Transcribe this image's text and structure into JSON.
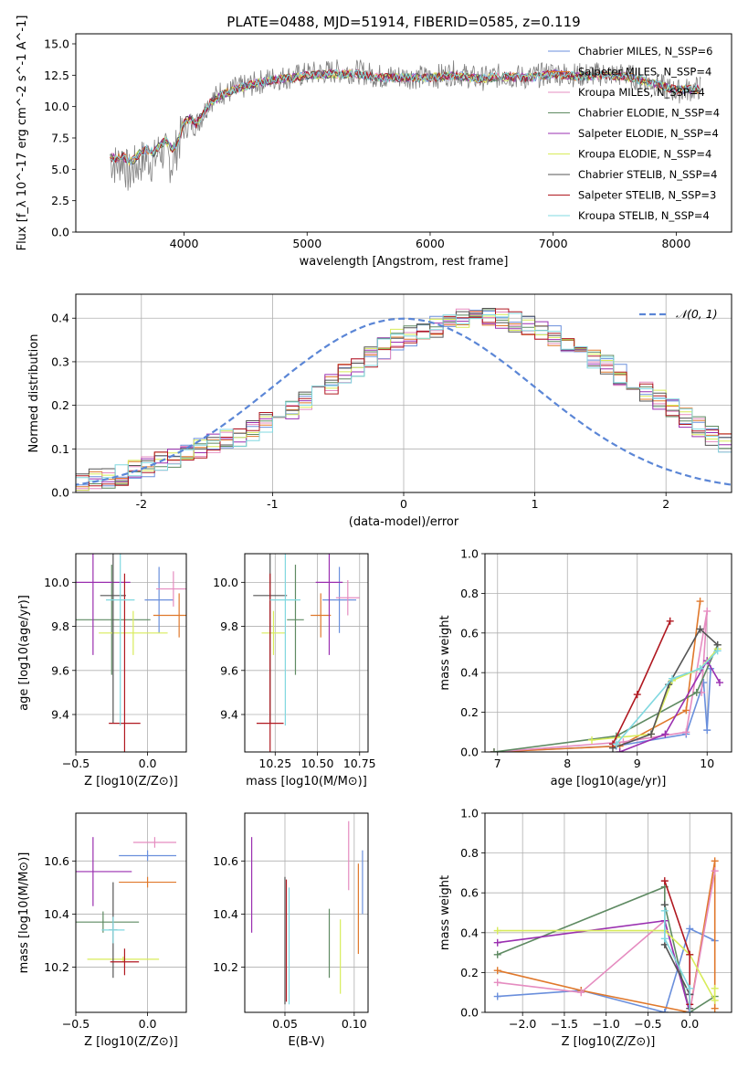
{
  "figure_title": "PLATE=0488, MJD=51914, FIBERID=0585, z=0.119",
  "colors": {
    "Chabrier MILES": "#6a8fdc",
    "Salpeter MILES": "#e0782b",
    "Kroupa MILES": "#e58cc0",
    "Chabrier ELODIE": "#5e8a62",
    "Salpeter ELODIE": "#9a2fb0",
    "Kroupa ELODIE": "#d8ec5a",
    "Chabrier STELIB": "#555555",
    "Salpeter STELIB": "#b01820",
    "Kroupa STELIB": "#80d8e0",
    "normal_curve": "#5b86d6",
    "grid": "#b0b0b0"
  },
  "chart_data": [
    {
      "id": "spectrum",
      "type": "line",
      "title": "PLATE=0488, MJD=51914, FIBERID=0585, z=0.119",
      "xlabel": "wavelength [Angstrom, rest frame]",
      "ylabel": "Flux [f_λ 10^-17 erg cm^-2 s^-1 A^-1]",
      "xlim": [
        3120,
        8450
      ],
      "ylim": [
        0,
        15.8
      ],
      "xticks": [
        4000,
        5000,
        6000,
        7000,
        8000
      ],
      "yticks": [
        "0.0",
        "2.5",
        "5.0",
        "7.5",
        "10.0",
        "12.5",
        "15.0"
      ],
      "grid": false,
      "legend_position": "top-right",
      "legend": [
        "Chabrier MILES, N_SSP=6",
        "Salpeter MILES, N_SSP=4",
        "Kroupa MILES, N_SSP=4",
        "Chabrier ELODIE, N_SSP=4",
        "Salpeter ELODIE, N_SSP=4",
        "Kroupa ELODIE, N_SSP=4",
        "Chabrier STELIB, N_SSP=4",
        "Salpeter STELIB, N_SSP=3",
        "Kroupa STELIB, N_SSP=4"
      ],
      "data_spectrum": {
        "x": [
          3400,
          3450,
          3500,
          3550,
          3600,
          3650,
          3700,
          3750,
          3800,
          3850,
          3900,
          3950,
          4000,
          4050,
          4100,
          4150,
          4200,
          4250,
          4300,
          4350,
          4400,
          4500,
          4600,
          4700,
          4800,
          4900,
          5000,
          5200,
          5400,
          5600,
          5800,
          6000,
          6200,
          6400,
          6600,
          6800,
          7000,
          7200,
          7400,
          7600,
          7800,
          8000,
          8200
        ],
        "y": [
          5.8,
          5.3,
          5.9,
          4.5,
          5.2,
          5.6,
          6.0,
          5.5,
          6.6,
          6.2,
          5.4,
          7.0,
          8.2,
          8.7,
          8.6,
          9.3,
          10.4,
          10.7,
          11.2,
          11.0,
          11.4,
          11.6,
          11.9,
          12.2,
          12.3,
          12.4,
          12.6,
          12.8,
          12.8,
          12.4,
          12.4,
          12.3,
          12.7,
          12.2,
          12.5,
          12.3,
          12.7,
          12.5,
          12.6,
          12.5,
          11.9,
          11.2,
          11.5
        ]
      },
      "model_spectrum": {
        "x": [
          3400,
          3450,
          3500,
          3550,
          3600,
          3650,
          3700,
          3750,
          3800,
          3850,
          3900,
          3950,
          4000,
          4050,
          4100,
          4150,
          4200,
          4250,
          4300,
          4350,
          4400,
          4500,
          4600,
          4700,
          4800,
          4900,
          5000,
          5200,
          5400,
          5600,
          5800,
          6000,
          6200,
          6400,
          6600,
          6800,
          7000,
          7200,
          7400,
          7600,
          7800,
          8000,
          8200
        ],
        "y": [
          6.0,
          5.8,
          6.1,
          5.6,
          5.8,
          6.4,
          6.6,
          6.3,
          6.9,
          7.3,
          6.6,
          7.2,
          8.8,
          9.0,
          8.6,
          9.4,
          10.2,
          10.5,
          10.9,
          11.1,
          11.3,
          11.6,
          11.9,
          12.1,
          12.2,
          12.3,
          12.5,
          12.6,
          12.6,
          12.3,
          12.3,
          12.3,
          12.5,
          12.2,
          12.4,
          12.3,
          12.6,
          12.4,
          12.5,
          12.4,
          11.9,
          11.3,
          11.4
        ]
      }
    },
    {
      "id": "residuals",
      "type": "line",
      "xlabel": "(data-model)/error",
      "ylabel": "Normed distribution",
      "xlim": [
        -2.5,
        2.5
      ],
      "ylim": [
        0,
        0.455
      ],
      "xticks": [
        -2,
        -1,
        0,
        1,
        2
      ],
      "yticks": [
        "0.0",
        "0.1",
        "0.2",
        "0.3",
        "0.4"
      ],
      "grid": true,
      "legend_position": "top-right",
      "legend": [
        "𝒩(0, 1)"
      ],
      "normal_curve": {
        "mean": 0,
        "sigma": 1
      },
      "histogram_bins": {
        "x_start": -2.5,
        "bin_width": 0.1,
        "heights": [
          0.02,
          0.03,
          0.03,
          0.04,
          0.05,
          0.06,
          0.07,
          0.08,
          0.09,
          0.1,
          0.11,
          0.12,
          0.13,
          0.14,
          0.16,
          0.17,
          0.19,
          0.21,
          0.23,
          0.25,
          0.27,
          0.29,
          0.31,
          0.33,
          0.35,
          0.36,
          0.37,
          0.38,
          0.39,
          0.4,
          0.41,
          0.4,
          0.4,
          0.39,
          0.38,
          0.37,
          0.36,
          0.34,
          0.33,
          0.31,
          0.29,
          0.27,
          0.25,
          0.23,
          0.21,
          0.19,
          0.17,
          0.15,
          0.13,
          0.11,
          0.1
        ]
      }
    },
    {
      "id": "age-vs-metallicity",
      "type": "scatter",
      "xlabel": "Z [log10(Z/Z⊙)]",
      "ylabel": "age [log10(age/yr)]",
      "xlim": [
        -0.5,
        0.27
      ],
      "ylim": [
        9.23,
        10.13
      ],
      "xticks": [
        "−0.5",
        "0.0"
      ],
      "yticks": [
        "9.4",
        "9.6",
        "9.8",
        "10.0"
      ],
      "grid": true,
      "points": [
        {
          "model": "Chabrier MILES",
          "x": 0.08,
          "y": 9.92,
          "xerr": 0.1,
          "yerr": 0.15
        },
        {
          "model": "Salpeter MILES",
          "x": 0.22,
          "y": 9.85,
          "xerr": 0.18,
          "yerr": 0.1
        },
        {
          "model": "Kroupa MILES",
          "x": 0.18,
          "y": 9.97,
          "xerr": 0.12,
          "yerr": 0.08
        },
        {
          "model": "Chabrier ELODIE",
          "x": -0.25,
          "y": 9.83,
          "xerr": 0.27,
          "yerr": 0.25
        },
        {
          "model": "Salpeter ELODIE",
          "x": -0.38,
          "y": 10.0,
          "xerr": 0.26,
          "yerr": 0.33
        },
        {
          "model": "Kroupa ELODIE",
          "x": -0.1,
          "y": 9.77,
          "xerr": 0.24,
          "yerr": 0.1
        },
        {
          "model": "Chabrier STELIB",
          "x": -0.24,
          "y": 9.94,
          "xerr": 0.09,
          "yerr": 0.58
        },
        {
          "model": "Salpeter STELIB",
          "x": -0.16,
          "y": 9.36,
          "xerr": 0.11,
          "yerr": 0.68
        },
        {
          "model": "Kroupa STELIB",
          "x": -0.19,
          "y": 9.92,
          "xerr": 0.1,
          "yerr": 0.57
        }
      ]
    },
    {
      "id": "age-vs-mass",
      "type": "scatter",
      "xlabel": "mass [log10(M/M⊙)]",
      "ylabel": "",
      "xlim": [
        10.07,
        10.8
      ],
      "ylim": [
        9.23,
        10.13
      ],
      "xticks": [
        "10.25",
        "10.50",
        "10.75"
      ],
      "yticks": [
        "9.4",
        "9.6",
        "9.8",
        "10.0"
      ],
      "grid": true,
      "points": [
        {
          "model": "Chabrier MILES",
          "x": 10.63,
          "y": 9.92,
          "xerr": 0.1,
          "yerr": 0.15
        },
        {
          "model": "Salpeter MILES",
          "x": 10.52,
          "y": 9.85,
          "xerr": 0.06,
          "yerr": 0.1
        },
        {
          "model": "Kroupa MILES",
          "x": 10.68,
          "y": 9.93,
          "xerr": 0.07,
          "yerr": 0.08
        },
        {
          "model": "Chabrier ELODIE",
          "x": 10.37,
          "y": 9.83,
          "xerr": 0.05,
          "yerr": 0.25
        },
        {
          "model": "Salpeter ELODIE",
          "x": 10.57,
          "y": 10.0,
          "xerr": 0.08,
          "yerr": 0.33
        },
        {
          "model": "Kroupa ELODIE",
          "x": 10.24,
          "y": 9.77,
          "xerr": 0.07,
          "yerr": 0.1
        },
        {
          "model": "Chabrier STELIB",
          "x": 10.22,
          "y": 9.94,
          "xerr": 0.1,
          "yerr": 0.58
        },
        {
          "model": "Salpeter STELIB",
          "x": 10.22,
          "y": 9.36,
          "xerr": 0.08,
          "yerr": 0.68
        },
        {
          "model": "Kroupa STELIB",
          "x": 10.31,
          "y": 9.92,
          "xerr": 0.09,
          "yerr": 0.57
        }
      ]
    },
    {
      "id": "mass-weight-vs-age",
      "type": "line",
      "xlabel": "age [log10(age/yr)]",
      "ylabel": "mass weight",
      "xlim": [
        6.82,
        10.35
      ],
      "ylim": [
        0,
        1.0
      ],
      "xticks": [
        "7",
        "8",
        "9",
        "10"
      ],
      "yticks": [
        "0.0",
        "0.2",
        "0.4",
        "0.6",
        "0.8",
        "1.0"
      ],
      "grid": true,
      "series": [
        {
          "model": "Chabrier MILES",
          "x": [
            6.95,
            8.7,
            9.7,
            9.95,
            10.0,
            10.05
          ],
          "y": [
            0.0,
            0.03,
            0.09,
            0.35,
            0.11,
            0.42
          ]
        },
        {
          "model": "Salpeter MILES",
          "x": [
            6.95,
            8.75,
            9.7,
            9.9
          ],
          "y": [
            0.0,
            0.03,
            0.21,
            0.76
          ]
        },
        {
          "model": "Kroupa MILES",
          "x": [
            6.95,
            8.8,
            9.7,
            10.0,
            9.92
          ],
          "y": [
            0.0,
            0.05,
            0.1,
            0.71,
            0.3
          ]
        },
        {
          "model": "Chabrier ELODIE",
          "x": [
            6.95,
            8.7,
            9.85,
            10.15
          ],
          "y": [
            0.0,
            0.08,
            0.3,
            0.54
          ]
        },
        {
          "model": "Salpeter ELODIE",
          "x": [
            8.75,
            9.4,
            10.0,
            10.18
          ],
          "y": [
            0.0,
            0.09,
            0.46,
            0.35
          ]
        },
        {
          "model": "Kroupa ELODIE",
          "x": [
            8.35,
            9.2,
            9.5,
            9.9,
            10.15
          ],
          "y": [
            0.06,
            0.09,
            0.36,
            0.42,
            0.52
          ]
        },
        {
          "model": "Chabrier STELIB",
          "x": [
            8.65,
            9.2,
            9.45,
            9.9,
            10.15
          ],
          "y": [
            0.02,
            0.09,
            0.34,
            0.62,
            0.54
          ]
        },
        {
          "model": "Salpeter STELIB",
          "x": [
            8.65,
            9.0,
            9.47
          ],
          "y": [
            0.04,
            0.29,
            0.66
          ]
        },
        {
          "model": "Kroupa STELIB",
          "x": [
            8.7,
            9.5,
            9.9,
            10.15
          ],
          "y": [
            0.04,
            0.37,
            0.42,
            0.51
          ]
        }
      ]
    },
    {
      "id": "mass-vs-metallicity",
      "type": "scatter",
      "xlabel": "Z [log10(Z/Z⊙)]",
      "ylabel": "mass [log10(M/M⊙)]",
      "xlim": [
        -0.5,
        0.27
      ],
      "ylim": [
        10.03,
        10.78
      ],
      "xticks": [
        "−0.5",
        "0.0"
      ],
      "yticks": [
        "10.2",
        "10.4",
        "10.6"
      ],
      "grid": true,
      "points": [
        {
          "model": "Chabrier MILES",
          "x": 0.0,
          "y": 10.62,
          "xerr": 0.2,
          "yerr": 0.02
        },
        {
          "model": "Salpeter MILES",
          "x": 0.0,
          "y": 10.52,
          "xerr": 0.2,
          "yerr": 0.02
        },
        {
          "model": "Kroupa MILES",
          "x": 0.05,
          "y": 10.67,
          "xerr": 0.15,
          "yerr": 0.02
        },
        {
          "model": "Chabrier ELODIE",
          "x": -0.31,
          "y": 10.37,
          "xerr": 0.25,
          "yerr": 0.04
        },
        {
          "model": "Salpeter ELODIE",
          "x": -0.38,
          "y": 10.56,
          "xerr": 0.27,
          "yerr": 0.13
        },
        {
          "model": "Kroupa ELODIE",
          "x": -0.17,
          "y": 10.23,
          "xerr": 0.25,
          "yerr": 0.01
        },
        {
          "model": "Chabrier STELIB",
          "x": -0.24,
          "y": 10.34,
          "xerr": 0.03,
          "yerr": 0.18
        },
        {
          "model": "Salpeter STELIB",
          "x": -0.16,
          "y": 10.22,
          "xerr": 0.1,
          "yerr": 0.05
        },
        {
          "model": "Kroupa STELIB",
          "x": -0.24,
          "y": 10.34,
          "xerr": 0.08,
          "yerr": 0.05
        }
      ]
    },
    {
      "id": "mass-vs-extinction",
      "type": "scatter",
      "xlabel": "E(B-V)",
      "ylabel": "",
      "xlim": [
        0.021,
        0.11
      ],
      "ylim": [
        10.03,
        10.78
      ],
      "xticks": [
        "0.05",
        "0.10"
      ],
      "yticks": [
        "10.2",
        "10.4",
        "10.6"
      ],
      "grid": true,
      "points": [
        {
          "model": "Chabrier MILES",
          "x": 0.106,
          "y": 10.52,
          "yerr": 0.12
        },
        {
          "model": "Salpeter MILES",
          "x": 0.103,
          "y": 10.42,
          "yerr": 0.17
        },
        {
          "model": "Kroupa MILES",
          "x": 0.096,
          "y": 10.62,
          "yerr": 0.13
        },
        {
          "model": "Chabrier ELODIE",
          "x": 0.082,
          "y": 10.29,
          "yerr": 0.13
        },
        {
          "model": "Salpeter ELODIE",
          "x": 0.026,
          "y": 10.51,
          "yerr": 0.18
        },
        {
          "model": "Kroupa ELODIE",
          "x": 0.09,
          "y": 10.24,
          "yerr": 0.14
        },
        {
          "model": "Chabrier STELIB",
          "x": 0.05,
          "y": 10.3,
          "yerr": 0.24
        },
        {
          "model": "Salpeter STELIB",
          "x": 0.051,
          "y": 10.3,
          "yerr": 0.23
        },
        {
          "model": "Kroupa STELIB",
          "x": 0.053,
          "y": 10.28,
          "yerr": 0.22
        }
      ]
    },
    {
      "id": "mass-weight-vs-metallicity",
      "type": "line",
      "xlabel": "Z [log10(Z/Z⊙)]",
      "ylabel": "mass weight",
      "xlim": [
        -2.45,
        0.5
      ],
      "ylim": [
        0,
        1.0
      ],
      "xticks": [
        "−2.0",
        "−1.5",
        "−1.0",
        "−0.5",
        "0.0"
      ],
      "yticks": [
        "0.0",
        "0.2",
        "0.4",
        "0.6",
        "0.8",
        "1.0"
      ],
      "grid": true,
      "series": [
        {
          "model": "Chabrier MILES",
          "x": [
            -2.3,
            -1.3,
            -0.3,
            0.0,
            0.3
          ],
          "y": [
            0.08,
            0.11,
            0.0,
            0.42,
            0.36
          ]
        },
        {
          "model": "Salpeter MILES",
          "x": [
            -2.3,
            -1.3,
            0.0,
            0.3,
            0.3
          ],
          "y": [
            0.21,
            0.11,
            0.0,
            0.76,
            0.02
          ]
        },
        {
          "model": "Kroupa MILES",
          "x": [
            -2.3,
            -1.3,
            -0.3,
            0.0,
            0.3
          ],
          "y": [
            0.15,
            0.1,
            0.46,
            0.0,
            0.71
          ]
        },
        {
          "model": "Chabrier ELODIE",
          "x": [
            -2.3,
            -0.3,
            -0.3,
            0.0,
            0.3
          ],
          "y": [
            0.29,
            0.63,
            0.54,
            0.0,
            0.08
          ]
        },
        {
          "model": "Salpeter ELODIE",
          "x": [
            -2.3,
            -0.3,
            0.0,
            0.0
          ],
          "y": [
            0.35,
            0.46,
            0.0,
            0.09
          ]
        },
        {
          "model": "Kroupa ELODIE",
          "x": [
            -2.3,
            -0.3,
            0.0,
            0.3,
            0.3
          ],
          "y": [
            0.41,
            0.41,
            0.29,
            0.06,
            0.12
          ]
        },
        {
          "model": "Chabrier STELIB",
          "x": [
            -0.3,
            -0.3,
            0.0,
            0.0
          ],
          "y": [
            0.54,
            0.34,
            0.09,
            0.02
          ]
        },
        {
          "model": "Salpeter STELIB",
          "x": [
            -0.3,
            0.0,
            0.0
          ],
          "y": [
            0.66,
            0.29,
            0.04
          ]
        },
        {
          "model": "Kroupa STELIB",
          "x": [
            -0.3,
            -0.3,
            0.0,
            0.0
          ],
          "y": [
            0.51,
            0.37,
            0.12,
            0.0
          ]
        }
      ]
    }
  ]
}
